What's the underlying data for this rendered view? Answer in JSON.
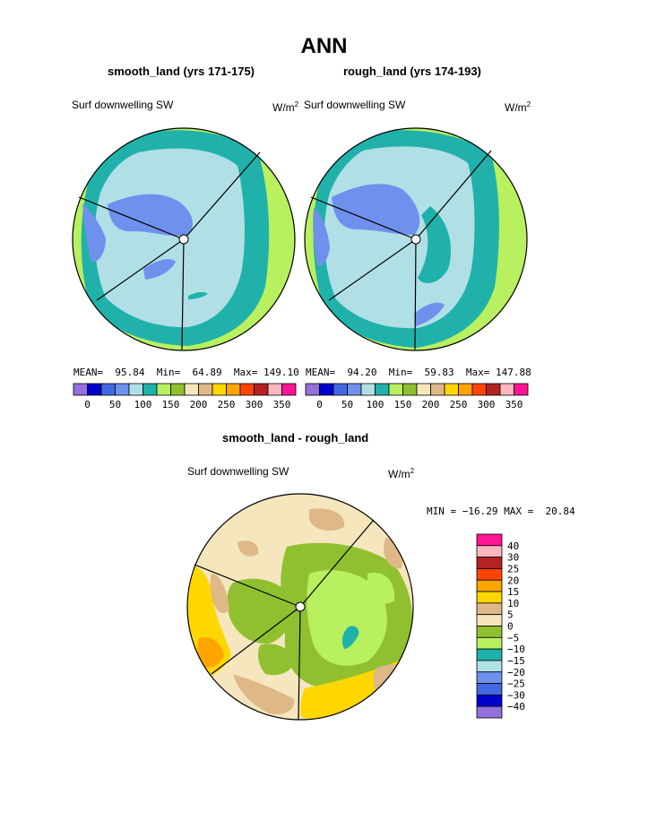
{
  "chart_data": [
    {
      "type": "heatmap",
      "projection": "polar",
      "case": "smooth_land (yrs 171-175)",
      "variable": "Surf downwelling SW",
      "units": "W/m",
      "units_exp": "2",
      "stats": {
        "MEAN": "95.84",
        "Min": "64.89",
        "Max": "149.10"
      },
      "legend_placement": "bottom",
      "colorbar_ticks": [
        "0",
        "50",
        "100",
        "150",
        "200",
        "250",
        "300",
        "350"
      ],
      "colorbar_colors": [
        "#9370DB",
        "#0000CD",
        "#4169E1",
        "#7090EE",
        "#B0E0E6",
        "#20B2AA",
        "#B8F060",
        "#90C030",
        "#F5E6BE",
        "#DEB887",
        "#FFD700",
        "#FFA500",
        "#FF4500",
        "#B22222",
        "#FFB6C1",
        "#FF1493"
      ]
    },
    {
      "type": "heatmap",
      "projection": "polar",
      "case": "rough_land (yrs 174-193)",
      "variable": "Surf downwelling SW",
      "units": "W/m",
      "units_exp": "2",
      "stats": {
        "MEAN": "94.20",
        "Min": "59.83",
        "Max": "147.88"
      },
      "legend_placement": "bottom",
      "colorbar_ticks": [
        "0",
        "50",
        "100",
        "150",
        "200",
        "250",
        "300",
        "350"
      ],
      "colorbar_colors": [
        "#9370DB",
        "#0000CD",
        "#4169E1",
        "#7090EE",
        "#B0E0E6",
        "#20B2AA",
        "#B8F060",
        "#90C030",
        "#F5E6BE",
        "#DEB887",
        "#FFD700",
        "#FFA500",
        "#FF4500",
        "#B22222",
        "#FFB6C1",
        "#FF1493"
      ]
    },
    {
      "type": "heatmap",
      "projection": "polar",
      "case": "smooth_land - rough_land",
      "variable": "Surf downwelling SW",
      "units": "W/m",
      "units_exp": "2",
      "stats_text": "MIN = -16.29 MAX =  20.84",
      "legend_placement": "right",
      "colorbar_ticks": [
        "40",
        "30",
        "25",
        "20",
        "15",
        "10",
        "5",
        "0",
        "−5",
        "−10",
        "−15",
        "−20",
        "−25",
        "−30",
        "−40"
      ],
      "colorbar_colors": [
        "#FF1493",
        "#FFB6C1",
        "#B22222",
        "#FF4500",
        "#FFA500",
        "#FFD700",
        "#DEB887",
        "#F5E6BE",
        "#90C030",
        "#B8F060",
        "#20B2AA",
        "#B0E0E6",
        "#7090EE",
        "#4169E1",
        "#0000CD",
        "#9370DB"
      ]
    }
  ],
  "title": "ANN",
  "panels": {
    "p1": {
      "title": "smooth_land (yrs 171-175)",
      "label": "Surf downwelling SW",
      "unit": "W/m",
      "unit_exp": "2",
      "mean_label": "MEAN=",
      "mean": "95.84",
      "min_label": "Min=",
      "min": "64.89",
      "max_label": "Max=",
      "max": "149.10"
    },
    "p2": {
      "title": "rough_land (yrs 174-193)",
      "label": "Surf downwelling SW",
      "unit": "W/m",
      "unit_exp": "2",
      "mean_label": "MEAN=",
      "mean": "94.20",
      "min_label": "Min=",
      "min": "59.83",
      "max_label": "Max=",
      "max": "147.88"
    },
    "p3": {
      "title": "smooth_land - rough_land",
      "label": "Surf downwelling SW",
      "unit": "W/m",
      "unit_exp": "2",
      "stats": "MIN = −16.29 MAX =  20.84"
    }
  },
  "colors": {
    "lightblue": "#B0E0E6",
    "teal": "#20B2AA",
    "lime": "#B8F060",
    "olive": "#90C030",
    "medblue": "#7090EE",
    "cream": "#F5E6BE",
    "tan": "#DEB887",
    "gold": "#FFD700",
    "orange": "#FFA500"
  }
}
